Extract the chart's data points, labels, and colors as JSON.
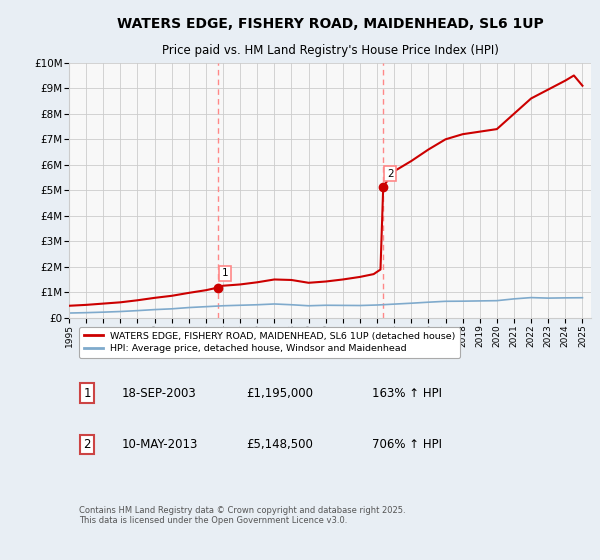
{
  "title": "WATERS EDGE, FISHERY ROAD, MAIDENHEAD, SL6 1UP",
  "subtitle": "Price paid vs. HM Land Registry's House Price Index (HPI)",
  "title_fontsize": 10,
  "subtitle_fontsize": 8.5,
  "ylim": [
    0,
    10000000
  ],
  "yticks": [
    0,
    1000000,
    2000000,
    3000000,
    4000000,
    5000000,
    6000000,
    7000000,
    8000000,
    9000000,
    10000000
  ],
  "ytick_labels": [
    "£0",
    "£1M",
    "£2M",
    "£3M",
    "£4M",
    "£5M",
    "£6M",
    "£7M",
    "£8M",
    "£9M",
    "£10M"
  ],
  "background_color": "#e8eef4",
  "plot_bg_color": "#f8f8f8",
  "grid_color": "#cccccc",
  "sale1_date": 2003.72,
  "sale1_price": 1195000,
  "sale1_label": "1",
  "sale2_date": 2013.36,
  "sale2_price": 5148500,
  "sale2_label": "2",
  "sale_marker_color": "#cc0000",
  "vline_color": "#ff8888",
  "vline_style": "--",
  "red_line_color": "#cc0000",
  "blue_line_color": "#7faacc",
  "legend_label_red": "WATERS EDGE, FISHERY ROAD, MAIDENHEAD, SL6 1UP (detached house)",
  "legend_label_blue": "HPI: Average price, detached house, Windsor and Maidenhead",
  "footer_text": "Contains HM Land Registry data © Crown copyright and database right 2025.\nThis data is licensed under the Open Government Licence v3.0.",
  "annotation1_date": "18-SEP-2003",
  "annotation1_price": "£1,195,000",
  "annotation1_hpi": "163% ↑ HPI",
  "annotation2_date": "10-MAY-2013",
  "annotation2_price": "£5,148,500",
  "annotation2_hpi": "706% ↑ HPI",
  "xmin": 1995,
  "xmax": 2025.5,
  "years_hpi": [
    1995,
    1996,
    1997,
    1998,
    1999,
    2000,
    2001,
    2002,
    2003,
    2004,
    2005,
    2006,
    2007,
    2008,
    2009,
    2010,
    2011,
    2012,
    2013,
    2014,
    2015,
    2016,
    2017,
    2018,
    2019,
    2020,
    2021,
    2022,
    2023,
    2024,
    2025
  ],
  "hpi_values": [
    195000,
    210000,
    230000,
    255000,
    290000,
    330000,
    360000,
    410000,
    445000,
    480000,
    500000,
    520000,
    550000,
    520000,
    480000,
    500000,
    495000,
    490000,
    510000,
    545000,
    580000,
    620000,
    655000,
    660000,
    670000,
    680000,
    750000,
    800000,
    780000,
    790000,
    795000
  ],
  "years_prop": [
    1995.0,
    1996.0,
    1997.0,
    1998.0,
    1999.0,
    2000.0,
    2001.0,
    2002.0,
    2003.0,
    2003.72,
    2004.0,
    2005.0,
    2006.0,
    2007.0,
    2008.0,
    2009.0,
    2010.0,
    2011.0,
    2012.0,
    2012.8,
    2013.2,
    2013.36,
    2014.0,
    2015.0,
    2016.0,
    2017.0,
    2018.0,
    2019.0,
    2020.0,
    2021.0,
    2022.0,
    2023.0,
    2024.0,
    2024.5,
    2025.0
  ],
  "prop_values": [
    480000,
    515000,
    565000,
    615000,
    695000,
    790000,
    870000,
    985000,
    1090000,
    1195000,
    1265000,
    1315000,
    1400000,
    1510000,
    1490000,
    1380000,
    1430000,
    1510000,
    1610000,
    1720000,
    1900000,
    5148500,
    5750000,
    6150000,
    6600000,
    7000000,
    7200000,
    7300000,
    7400000,
    8000000,
    8600000,
    8950000,
    9300000,
    9500000,
    9100000
  ]
}
